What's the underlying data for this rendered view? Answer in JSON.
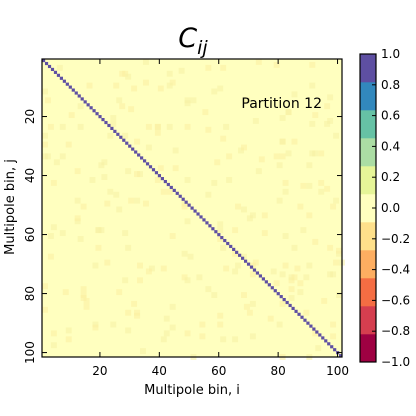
{
  "chart_data": {
    "type": "heatmap",
    "title": "C_ij",
    "title_main": "C",
    "title_sub": "ij",
    "annotation": "Partition 12",
    "annotation_color": "#8b1f86",
    "xlabel": "Multipole bin, i",
    "ylabel": "Multipole bin, j",
    "xlim": [
      0.5,
      101.5
    ],
    "ylim": [
      101.5,
      0.5
    ],
    "n_bins": 101,
    "xticks": [
      20,
      40,
      60,
      80,
      100
    ],
    "yticks": [
      20,
      40,
      60,
      80,
      100
    ],
    "matrix": {
      "diagonal_value": 1.0,
      "off_diagonal_value": 0.05,
      "off_diagonal_noise_range": [
        -0.05,
        0.15
      ]
    },
    "colorbar": {
      "vmin": -1.0,
      "vmax": 1.0,
      "ticks": [
        1.0,
        0.8,
        0.6,
        0.4,
        0.2,
        0.0,
        -0.2,
        -0.4,
        -0.6,
        -0.8,
        -1.0
      ],
      "tick_labels": [
        "1.0",
        "0.8",
        "0.6",
        "0.4",
        "0.2",
        "0.0",
        "−0.2",
        "−0.4",
        "−0.6",
        "−0.8",
        "−1.0"
      ],
      "colors": [
        "#9e0142",
        "#d53e4f",
        "#f46d43",
        "#fdae61",
        "#fee08b",
        "#ffffbf",
        "#e6f598",
        "#abdda4",
        "#66c2a5",
        "#3288bd",
        "#5e4fa2"
      ]
    },
    "grid": false,
    "legend": "none"
  }
}
